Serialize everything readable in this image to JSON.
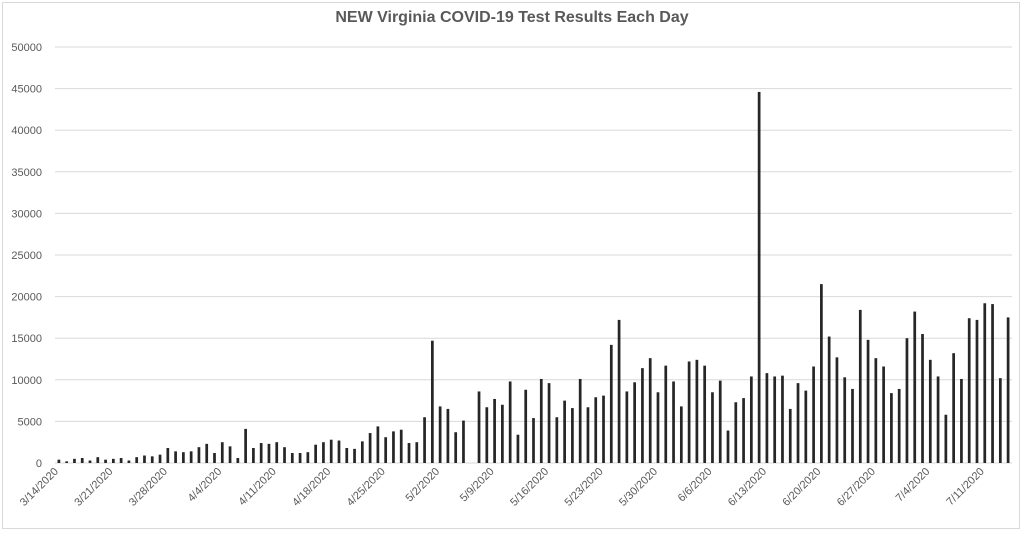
{
  "chart_data": {
    "type": "bar",
    "title": "NEW Virginia COVID-19 Test Results Each Day",
    "xlabel": "",
    "ylabel": "",
    "ylim": [
      0,
      50000
    ],
    "yticks": [
      "0",
      "5000",
      "10000",
      "15000",
      "20000",
      "25000",
      "30000",
      "35000",
      "40000",
      "45000",
      "50000"
    ],
    "xtick_labels": [
      "3/14/2020",
      "3/21/2020",
      "3/28/2020",
      "4/4/2020",
      "4/11/2020",
      "4/18/2020",
      "4/25/2020",
      "5/2/2020",
      "5/9/2020",
      "5/16/2020",
      "5/23/2020",
      "5/30/2020",
      "6/6/2020",
      "6/13/2020",
      "6/20/2020",
      "6/27/2020",
      "7/4/2020",
      "7/11/2020"
    ],
    "start_date": "3/14/2020",
    "bar_color": "#262626",
    "grid_color": "#d9d9d9",
    "grid": true,
    "legend": "none",
    "values": [
      400,
      200,
      500,
      600,
      300,
      700,
      400,
      500,
      600,
      300,
      700,
      900,
      800,
      1000,
      1800,
      1400,
      1300,
      1400,
      1900,
      2300,
      1200,
      2500,
      2000,
      600,
      4100,
      1800,
      2400,
      2300,
      2500,
      1900,
      1200,
      1200,
      1300,
      2200,
      2500,
      2800,
      2700,
      1800,
      1700,
      2600,
      3600,
      4400,
      3100,
      3800,
      4000,
      2400,
      2500,
      5500,
      14700,
      6800,
      6500,
      3700,
      5100,
      0,
      8600,
      6700,
      7700,
      7000,
      9800,
      3400,
      8800,
      5400,
      10100,
      9600,
      5500,
      7500,
      6600,
      10100,
      6700,
      7900,
      8100,
      14200,
      17200,
      8600,
      9700,
      11400,
      12600,
      8500,
      11700,
      9800,
      6800,
      12200,
      12400,
      11700,
      8500,
      9900,
      3900,
      7300,
      7800,
      10400,
      44600,
      10800,
      10400,
      10500,
      6500,
      9600,
      8700,
      11600,
      21500,
      15200,
      12700,
      10300,
      8900,
      18400,
      14800,
      12600,
      11600,
      8400,
      8900,
      15000,
      18200,
      15500,
      12400,
      10400,
      5800,
      13200,
      10100,
      17400,
      17200,
      19200,
      19100,
      10200,
      17500
    ]
  }
}
